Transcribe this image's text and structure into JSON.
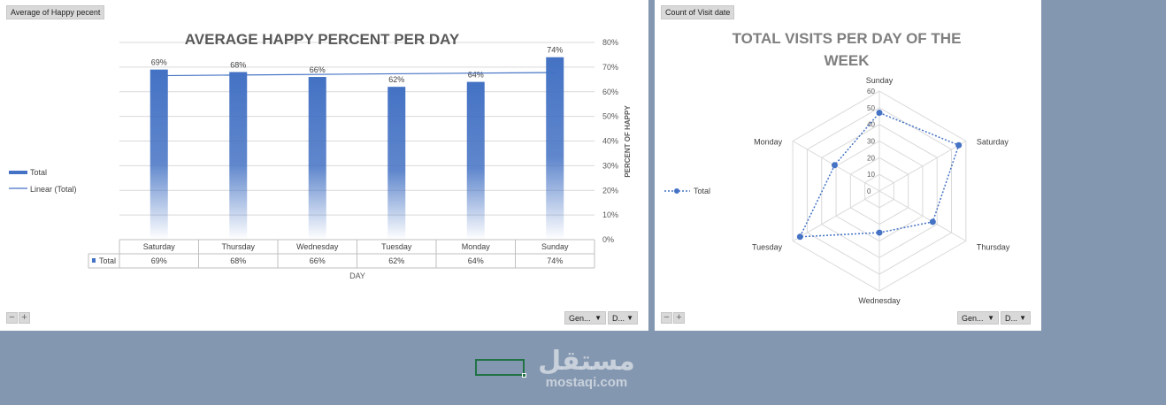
{
  "bar_panel": {
    "field_button": "Average of Happy pecent",
    "zoom_minus": "−",
    "zoom_plus": "+",
    "dropdown1": "Gen...",
    "dropdown2": "D..."
  },
  "radar_panel": {
    "field_button": "Count of  Visit date",
    "zoom_minus": "−",
    "zoom_plus": "+",
    "dropdown1": "Gen...",
    "dropdown2": "D..."
  },
  "watermark": {
    "arabic": "مستقل",
    "latin": "mostaqi.com"
  },
  "chart_data": [
    {
      "type": "bar",
      "title": "AVERAGE HAPPY PERCENT PER DAY",
      "xlabel": "DAY",
      "ylabel": "PERCENT OF HAPPY",
      "categories": [
        "Saturday",
        "Thursday",
        "Wednesday",
        "Tuesday",
        "Monday",
        "Sunday"
      ],
      "series": [
        {
          "name": "Total",
          "values": [
            69,
            68,
            66,
            62,
            64,
            74
          ],
          "labels": [
            "69%",
            "68%",
            "66%",
            "62%",
            "64%",
            "74%"
          ]
        }
      ],
      "trendline": {
        "name": "Linear (Total)"
      },
      "ylim": [
        0,
        80
      ],
      "yticks": [
        "0%",
        "10%",
        "20%",
        "30%",
        "40%",
        "50%",
        "60%",
        "70%",
        "80%"
      ],
      "y_axis_position": "right",
      "grid": true,
      "legend": [
        "Total",
        "Linear (Total)"
      ],
      "legend_position": "left",
      "data_table": true,
      "colors": {
        "bar": "#4472c4",
        "trend": "#4472c4"
      }
    },
    {
      "type": "radar",
      "title": "TOTAL VISITS PER DAY OF THE WEEK",
      "categories": [
        "Sunday",
        "Saturday",
        "Thursday",
        "Wednesday",
        "Tuesday",
        "Monday"
      ],
      "series": [
        {
          "name": "Total",
          "values": [
            47,
            55,
            37,
            25,
            55,
            31
          ]
        }
      ],
      "rlim": [
        0,
        60
      ],
      "rticks": [
        "0",
        "10",
        "20",
        "30",
        "40",
        "50",
        "60"
      ],
      "legend": [
        "Total"
      ],
      "legend_position": "left",
      "colors": {
        "series": "#4472c4"
      }
    }
  ]
}
